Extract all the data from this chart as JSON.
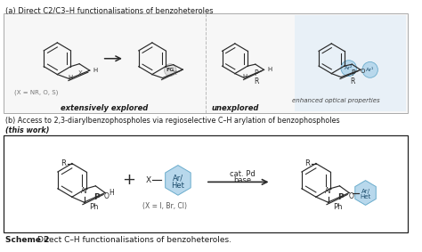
{
  "title_a": "(a) Direct C2/C3–H functionalisations of benzoheteroles",
  "title_b": "(b) Access to 2,3-diarylbenzophospholes via regioselective C–H arylation of benzophospholes",
  "title_b2": "(this work)",
  "scheme_label_bold": "Scheme 2 ",
  "scheme_label_rest": "Direct C–H functionalisations of benzoheteroles.",
  "label_extensively": "extensively explored",
  "label_unexplored": "unexplored",
  "label_enhanced": "enhanced optical properties",
  "label_x_eq": "(X = NR, O, S)",
  "label_cat_pd": "cat. Pd",
  "label_base": "base",
  "label_x_hal": "(X = I, Br, Cl)",
  "bg_color": "#ffffff",
  "bond_color": "#2a2a2a",
  "text_color": "#1a1a1a",
  "gray_text": "#777777",
  "blue_fill": "#b8d8ec",
  "blue_edge": "#6aaccc",
  "blue_text": "#1a4a6a",
  "highlight_bg": "#e8f0f7",
  "box_bg": "#f7f7f7",
  "dashed_color": "#bbbbbb"
}
